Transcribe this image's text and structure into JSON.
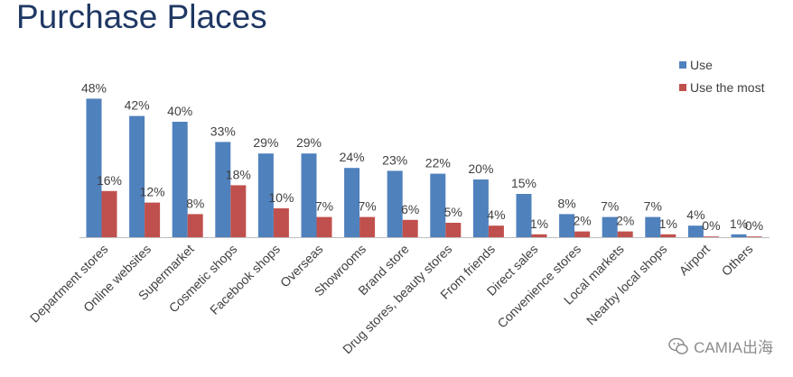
{
  "page": {
    "title": "Purchase Places"
  },
  "watermark": {
    "text": "CAMIA出海",
    "icon": "wechat-icon"
  },
  "colors": {
    "use": "#4f81bd",
    "use_most": "#c0504d",
    "axis": "#bfbfbf",
    "text": "#404040",
    "title": "#1f3864"
  },
  "chart_data": {
    "type": "bar",
    "title": "Purchase Places",
    "categories": [
      "Department stores",
      "Online websites",
      "Supermarket",
      "Cosmetic shops",
      "Facebook shops",
      "Overseas",
      "Showrooms",
      "Brand store",
      "Drug stores, beauty stores",
      "From friends",
      "Direct sales",
      "Convenience stores",
      "Local markets",
      "Nearby local shops",
      "Airport",
      "Others"
    ],
    "series": [
      {
        "name": "Use",
        "values": [
          48,
          42,
          40,
          33,
          29,
          29,
          24,
          23,
          22,
          20,
          15,
          8,
          7,
          7,
          4,
          1
        ],
        "labels": [
          "48%",
          "42%",
          "40%",
          "33%",
          "29%",
          "29%",
          "24%",
          "23%",
          "22%",
          "20%",
          "15%",
          "8%",
          "7%",
          "7%",
          "4%",
          "1%"
        ]
      },
      {
        "name": "Use the most",
        "values": [
          16,
          12,
          8,
          18,
          10,
          7,
          7,
          6,
          5,
          4,
          1,
          2,
          2,
          1,
          0,
          0
        ],
        "labels": [
          "16%",
          "12%",
          "8%",
          "18%",
          "10%",
          "7%",
          "7%",
          "6%",
          "5%",
          "4%",
          "1%",
          "2%",
          "2%",
          "1%",
          "0%",
          "0%"
        ]
      }
    ],
    "ylim": [
      0,
      50
    ],
    "xlabel": "",
    "ylabel": "",
    "legend": "top-right",
    "grid": false
  }
}
